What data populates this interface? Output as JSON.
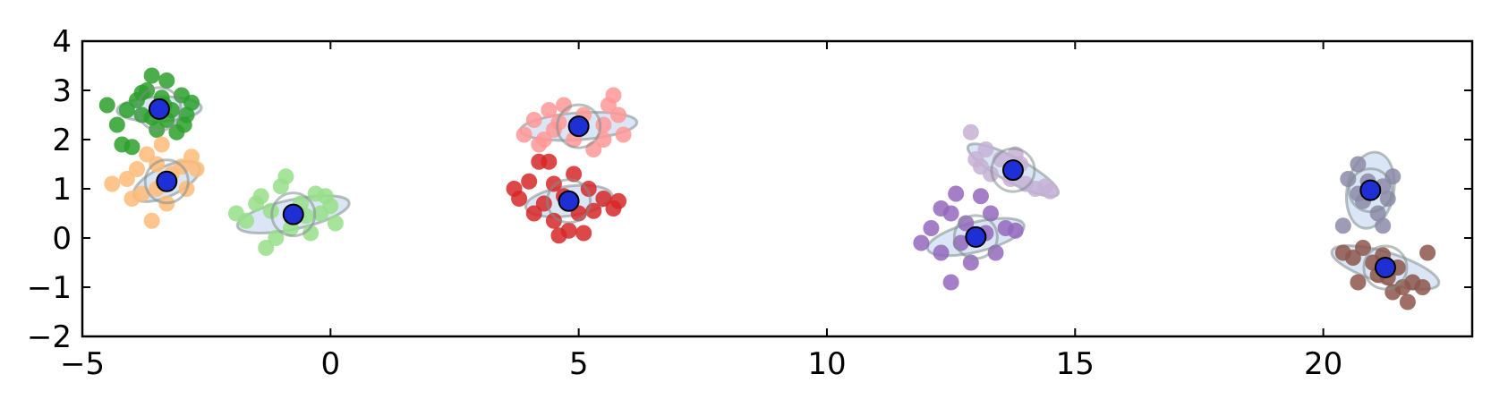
{
  "chart_data": {
    "type": "scatter",
    "title": "",
    "xlabel": "",
    "ylabel": "",
    "xlim": [
      -5,
      23
    ],
    "ylim": [
      -2,
      4
    ],
    "grid": false,
    "legend": "none",
    "x_ticks": [
      -5,
      0,
      5,
      10,
      15,
      20
    ],
    "y_ticks": [
      -2,
      -1,
      0,
      1,
      2,
      3,
      4
    ],
    "x_tick_labels": [
      "−5",
      "0",
      "5",
      "10",
      "15",
      "20"
    ],
    "y_tick_labels": [
      "−2",
      "−1",
      "0",
      "1",
      "2",
      "3",
      "4"
    ],
    "ellipse_style": {
      "fill": "#aec7e8",
      "fill_opacity": 0.45,
      "stroke": "#7f8c8d"
    },
    "center_marker_color": "#1f2fd6",
    "clusters": [
      {
        "color": "#2ca02c",
        "center": [
          -3.45,
          2.62
        ],
        "ellipse": {
          "rx": 1.7,
          "ry": 0.5,
          "angle": 2
        },
        "points": [
          [
            -4.5,
            2.7
          ],
          [
            -4.3,
            2.3
          ],
          [
            -4.2,
            1.9
          ],
          [
            -4.0,
            1.85
          ],
          [
            -3.9,
            2.8
          ],
          [
            -3.8,
            2.5
          ],
          [
            -3.7,
            3.0
          ],
          [
            -3.6,
            3.3
          ],
          [
            -3.5,
            2.2
          ],
          [
            -3.4,
            2.85
          ],
          [
            -3.3,
            2.4
          ],
          [
            -3.3,
            3.2
          ],
          [
            -3.2,
            2.6
          ],
          [
            -3.1,
            2.15
          ],
          [
            -3.0,
            2.9
          ],
          [
            -2.9,
            2.5
          ],
          [
            -2.8,
            2.75
          ],
          [
            -3.6,
            2.45
          ],
          [
            -3.8,
            2.95
          ],
          [
            -2.95,
            2.3
          ],
          [
            -4.1,
            2.6
          ],
          [
            -3.35,
            2.7
          ]
        ]
      },
      {
        "color": "#ffbb78",
        "center": [
          -3.3,
          1.15
        ],
        "ellipse": {
          "rx": 1.45,
          "ry": 0.6,
          "angle": 25
        },
        "points": [
          [
            -4.4,
            1.1
          ],
          [
            -4.1,
            1.2
          ],
          [
            -4.0,
            0.8
          ],
          [
            -3.9,
            1.4
          ],
          [
            -3.8,
            0.9
          ],
          [
            -3.7,
            1.7
          ],
          [
            -3.6,
            0.35
          ],
          [
            -3.5,
            1.0
          ],
          [
            -3.4,
            1.9
          ],
          [
            -3.3,
            0.7
          ],
          [
            -3.2,
            1.3
          ],
          [
            -3.0,
            1.45
          ],
          [
            -2.9,
            1.0
          ],
          [
            -2.8,
            1.65
          ],
          [
            -2.7,
            1.4
          ],
          [
            -3.5,
            1.5
          ]
        ]
      },
      {
        "color": "#98df8a",
        "center": [
          -0.75,
          0.48
        ],
        "ellipse": {
          "rx": 2.3,
          "ry": 0.6,
          "angle": 12
        },
        "points": [
          [
            -1.9,
            0.5
          ],
          [
            -1.7,
            0.35
          ],
          [
            -1.5,
            0.7
          ],
          [
            -1.3,
            -0.2
          ],
          [
            -1.2,
            0.55
          ],
          [
            -1.0,
            1.05
          ],
          [
            -0.9,
            1.25
          ],
          [
            -0.8,
            0.2
          ],
          [
            -0.6,
            0.7
          ],
          [
            -0.4,
            0.1
          ],
          [
            -0.3,
            0.9
          ],
          [
            -0.2,
            0.5
          ],
          [
            0.0,
            0.65
          ],
          [
            0.1,
            0.3
          ],
          [
            -1.1,
            0.0
          ],
          [
            -0.5,
            0.45
          ],
          [
            -1.4,
            0.85
          ],
          [
            -0.1,
            0.85
          ]
        ]
      },
      {
        "color": "#ff9896",
        "center": [
          5.0,
          2.27
        ],
        "ellipse": {
          "rx": 2.35,
          "ry": 0.55,
          "angle": 4
        },
        "points": [
          [
            3.9,
            2.1
          ],
          [
            4.1,
            2.4
          ],
          [
            4.2,
            1.9
          ],
          [
            4.4,
            2.6
          ],
          [
            4.5,
            2.2
          ],
          [
            4.7,
            2.7
          ],
          [
            4.9,
            2.0
          ],
          [
            5.1,
            2.5
          ],
          [
            5.3,
            1.8
          ],
          [
            5.5,
            2.3
          ],
          [
            5.6,
            2.7
          ],
          [
            5.7,
            2.9
          ],
          [
            5.8,
            2.5
          ],
          [
            5.9,
            2.1
          ],
          [
            5.5,
            2.0
          ],
          [
            4.6,
            2.35
          ],
          [
            4.3,
            2.0
          ]
        ]
      },
      {
        "color": "#d62728",
        "center": [
          4.8,
          0.75
        ],
        "ellipse": {
          "rx": 1.75,
          "ry": 0.6,
          "angle": 8
        },
        "points": [
          [
            3.7,
            1.0
          ],
          [
            3.8,
            0.8
          ],
          [
            4.0,
            1.15
          ],
          [
            4.1,
            0.5
          ],
          [
            4.2,
            1.55
          ],
          [
            4.3,
            0.7
          ],
          [
            4.4,
            1.55
          ],
          [
            4.5,
            0.35
          ],
          [
            4.6,
            0.05
          ],
          [
            4.7,
            0.85
          ],
          [
            4.8,
            0.15
          ],
          [
            5.0,
            0.5
          ],
          [
            5.1,
            0.1
          ],
          [
            5.2,
            1.0
          ],
          [
            5.3,
            0.55
          ],
          [
            5.5,
            0.8
          ],
          [
            5.7,
            0.6
          ],
          [
            5.8,
            0.75
          ],
          [
            4.9,
            1.3
          ],
          [
            4.5,
            1.1
          ]
        ]
      },
      {
        "color": "#c5b0d5",
        "center": [
          13.75,
          1.38
        ],
        "ellipse": {
          "rx": 2.05,
          "ry": 0.5,
          "angle": -28
        },
        "points": [
          [
            12.9,
            2.15
          ],
          [
            13.0,
            1.6
          ],
          [
            13.2,
            1.8
          ],
          [
            13.3,
            1.3
          ],
          [
            13.5,
            1.6
          ],
          [
            13.7,
            1.2
          ],
          [
            13.9,
            1.5
          ],
          [
            14.0,
            1.1
          ],
          [
            14.2,
            1.0
          ],
          [
            14.4,
            1.05
          ],
          [
            14.5,
            0.95
          ],
          [
            13.1,
            1.45
          ],
          [
            13.8,
            1.7
          ]
        ]
      },
      {
        "color": "#9467bd",
        "center": [
          13.0,
          0.02
        ],
        "ellipse": {
          "rx": 2.0,
          "ry": 0.6,
          "angle": 14
        },
        "points": [
          [
            11.9,
            -0.1
          ],
          [
            12.1,
            0.2
          ],
          [
            12.3,
            -0.3
          ],
          [
            12.5,
            0.5
          ],
          [
            12.5,
            -0.9
          ],
          [
            12.6,
            0.9
          ],
          [
            12.7,
            -0.1
          ],
          [
            12.8,
            0.3
          ],
          [
            12.9,
            -0.5
          ],
          [
            13.1,
            0.85
          ],
          [
            13.2,
            0.1
          ],
          [
            13.3,
            0.5
          ],
          [
            13.4,
            -0.3
          ],
          [
            13.6,
            0.2
          ],
          [
            13.8,
            0.15
          ],
          [
            12.3,
            0.6
          ]
        ]
      },
      {
        "color": "#8c8aa8",
        "center": [
          20.95,
          0.97
        ],
        "ellipse": {
          "rx": 1.55,
          "ry": 0.95,
          "angle": 80
        },
        "points": [
          [
            20.4,
            0.25
          ],
          [
            20.5,
            1.2
          ],
          [
            20.7,
            1.5
          ],
          [
            20.8,
            0.75
          ],
          [
            20.9,
            1.15
          ],
          [
            21.1,
            0.5
          ],
          [
            21.2,
            1.05
          ],
          [
            21.3,
            0.8
          ],
          [
            21.4,
            1.25
          ],
          [
            21.2,
            0.25
          ],
          [
            20.7,
            0.9
          ]
        ]
      },
      {
        "color": "#8c564b",
        "center": [
          21.25,
          -0.6
        ],
        "ellipse": {
          "rx": 2.25,
          "ry": 0.62,
          "angle": -17
        },
        "points": [
          [
            20.4,
            -0.3
          ],
          [
            20.6,
            -0.4
          ],
          [
            20.7,
            -0.9
          ],
          [
            20.8,
            -0.2
          ],
          [
            21.0,
            -0.5
          ],
          [
            21.1,
            -0.75
          ],
          [
            21.2,
            -0.35
          ],
          [
            21.4,
            -1.1
          ],
          [
            21.5,
            -0.6
          ],
          [
            21.6,
            -1.0
          ],
          [
            21.7,
            -1.3
          ],
          [
            21.8,
            -0.9
          ],
          [
            22.0,
            -1.0
          ],
          [
            22.1,
            -0.3
          ],
          [
            21.3,
            -0.8
          ]
        ]
      }
    ]
  }
}
